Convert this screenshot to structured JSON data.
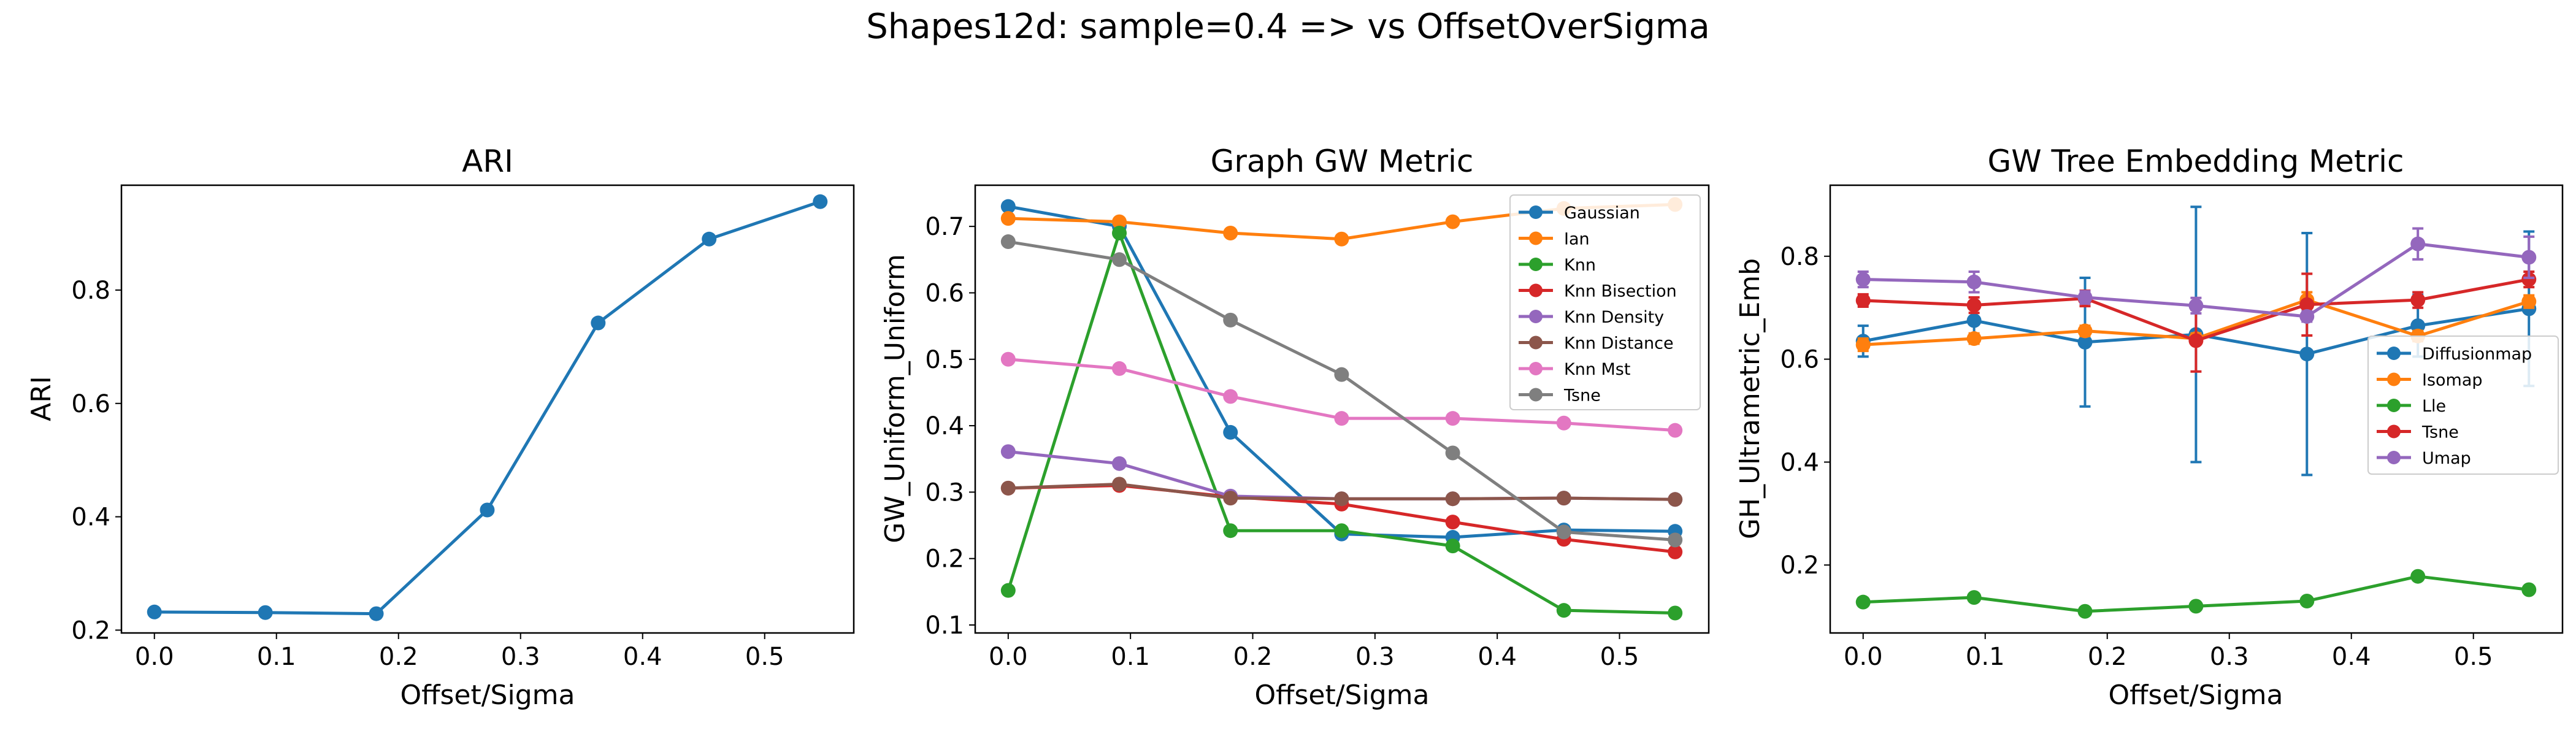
{
  "suptitle": "Shapes12d: sample=0.4 => vs OffsetOverSigma",
  "chart_data": [
    {
      "type": "line",
      "title": "ARI",
      "xlabel": "Offset/Sigma",
      "ylabel": "ARI",
      "xlim": [
        -0.027,
        0.573
      ],
      "ylim": [
        0.195,
        0.985
      ],
      "xticks": [
        "0.0",
        "0.1",
        "0.2",
        "0.3",
        "0.4",
        "0.5"
      ],
      "yticks": [
        "0.2",
        "0.4",
        "0.6",
        "0.8"
      ],
      "x": [
        0.0,
        0.0909,
        0.1818,
        0.2727,
        0.3636,
        0.4545,
        0.5455
      ],
      "series": [
        {
          "values": [
            0.232,
            0.231,
            0.229,
            0.412,
            0.742,
            0.89,
            0.956
          ],
          "color": "#1f77b4"
        }
      ],
      "legend": "none",
      "grid": false
    },
    {
      "type": "line",
      "title": "Graph GW Metric",
      "xlabel": "Offset/Sigma",
      "ylabel": "GW_Uniform_Uniform",
      "xlim": [
        -0.027,
        0.573
      ],
      "ylim": [
        0.088,
        0.762
      ],
      "xticks": [
        "0.0",
        "0.1",
        "0.2",
        "0.3",
        "0.4",
        "0.5"
      ],
      "yticks": [
        "0.1",
        "0.2",
        "0.3",
        "0.4",
        "0.5",
        "0.6",
        "0.7"
      ],
      "x": [
        0.0,
        0.0909,
        0.1818,
        0.2727,
        0.3636,
        0.4545,
        0.5455
      ],
      "series": [
        {
          "name": "Gaussian",
          "color": "#1f77b4",
          "values": [
            0.73,
            0.7,
            0.39,
            0.237,
            0.232,
            0.243,
            0.241
          ]
        },
        {
          "name": "Ian",
          "color": "#ff7f0e",
          "values": [
            0.712,
            0.707,
            0.69,
            0.681,
            0.707,
            0.727,
            0.733
          ]
        },
        {
          "name": "Knn",
          "color": "#2ca02c",
          "values": [
            0.152,
            0.69,
            0.242,
            0.242,
            0.219,
            0.122,
            0.118
          ]
        },
        {
          "name": "Knn Bisection",
          "color": "#d62728",
          "values": [
            0.306,
            0.31,
            0.293,
            0.282,
            0.255,
            0.229,
            0.21
          ]
        },
        {
          "name": "Knn Density",
          "color": "#9467bd",
          "values": [
            0.361,
            0.343,
            0.294,
            0.29,
            0.29,
            0.291,
            0.289
          ]
        },
        {
          "name": "Knn Distance",
          "color": "#8c564b",
          "values": [
            0.306,
            0.312,
            0.291,
            0.29,
            0.29,
            0.291,
            0.289
          ]
        },
        {
          "name": "Knn Mst",
          "color": "#e377c2",
          "values": [
            0.5,
            0.486,
            0.444,
            0.411,
            0.411,
            0.404,
            0.393
          ]
        },
        {
          "name": "Tsne",
          "color": "#7f7f7f",
          "values": [
            0.677,
            0.65,
            0.559,
            0.477,
            0.359,
            0.24,
            0.228
          ]
        }
      ],
      "legend": "top-right",
      "grid": false
    },
    {
      "type": "line",
      "title": "GW Tree Embedding Metric",
      "xlabel": "Offset/Sigma",
      "ylabel": "GH_Ultrametric_Emb",
      "xlim": [
        -0.027,
        0.573
      ],
      "ylim": [
        0.068,
        0.938
      ],
      "xticks": [
        "0.0",
        "0.1",
        "0.2",
        "0.3",
        "0.4",
        "0.5"
      ],
      "yticks": [
        "0.2",
        "0.4",
        "0.6",
        "0.8"
      ],
      "x": [
        0.0,
        0.0909,
        0.1818,
        0.2727,
        0.3636,
        0.4545,
        0.5455
      ],
      "error_bars": true,
      "series": [
        {
          "name": "Diffusionmap",
          "color": "#1f77b4",
          "values": [
            0.635,
            0.675,
            0.633,
            0.648,
            0.61,
            0.665,
            0.698
          ],
          "errors": [
            0.03,
            0.035,
            0.125,
            0.248,
            0.235,
            0.06,
            0.15
          ]
        },
        {
          "name": "Isomap",
          "color": "#ff7f0e",
          "values": [
            0.628,
            0.64,
            0.655,
            0.64,
            0.715,
            0.645,
            0.712
          ],
          "errors": [
            0.012,
            0.01,
            0.01,
            0.01,
            0.015,
            0.01,
            0.012
          ]
        },
        {
          "name": "Lle",
          "color": "#2ca02c",
          "values": [
            0.128,
            0.137,
            0.11,
            0.12,
            0.13,
            0.178,
            0.152
          ],
          "errors": [
            0.004,
            0.004,
            0.004,
            0.004,
            0.004,
            0.005,
            0.004
          ]
        },
        {
          "name": "Tsne",
          "color": "#d62728",
          "values": [
            0.714,
            0.705,
            0.718,
            0.636,
            0.706,
            0.715,
            0.755
          ],
          "errors": [
            0.012,
            0.015,
            0.015,
            0.06,
            0.06,
            0.015,
            0.015
          ]
        },
        {
          "name": "Umap",
          "color": "#9467bd",
          "values": [
            0.755,
            0.75,
            0.72,
            0.704,
            0.683,
            0.824,
            0.798
          ],
          "errors": [
            0.015,
            0.02,
            0.012,
            0.015,
            0.01,
            0.03,
            0.04
          ]
        }
      ],
      "legend": "center-right",
      "grid": false
    }
  ]
}
